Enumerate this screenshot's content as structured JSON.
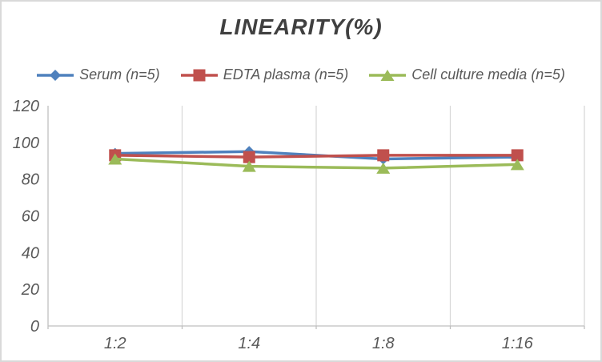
{
  "title": "LINEARITY(%)",
  "chart_data": {
    "type": "line",
    "title": "LINEARITY(%)",
    "categories": [
      "1:2",
      "1:4",
      "1:8",
      "1:16"
    ],
    "series": [
      {
        "name": "Serum (n=5)",
        "marker": "diamond",
        "color": "#4F81BD",
        "values": [
          94,
          95,
          91,
          92
        ]
      },
      {
        "name": "EDTA plasma (n=5)",
        "marker": "square",
        "color": "#C0504D",
        "values": [
          93,
          92,
          93,
          93
        ]
      },
      {
        "name": "Cell culture media (n=5)",
        "marker": "triangle",
        "color": "#9BBB59",
        "values": [
          91,
          87,
          86,
          88
        ]
      }
    ],
    "xlabel": "",
    "ylabel": "",
    "ylim": [
      0,
      120
    ],
    "yticks": [
      0,
      20,
      40,
      60,
      80,
      100,
      120
    ],
    "grid": "vertical-only",
    "legend_position": "top"
  },
  "colors": {
    "title_text": "#404040",
    "axis_text": "#595959",
    "legend_text": "#595959",
    "gridline": "#D9D9D9",
    "axis_line": "#BFBFBF",
    "border": "#D9D9D9",
    "background": "#FFFFFF",
    "serum": "#4F81BD",
    "edta_plasma": "#C0504D",
    "cell_culture_media": "#9BBB59"
  }
}
